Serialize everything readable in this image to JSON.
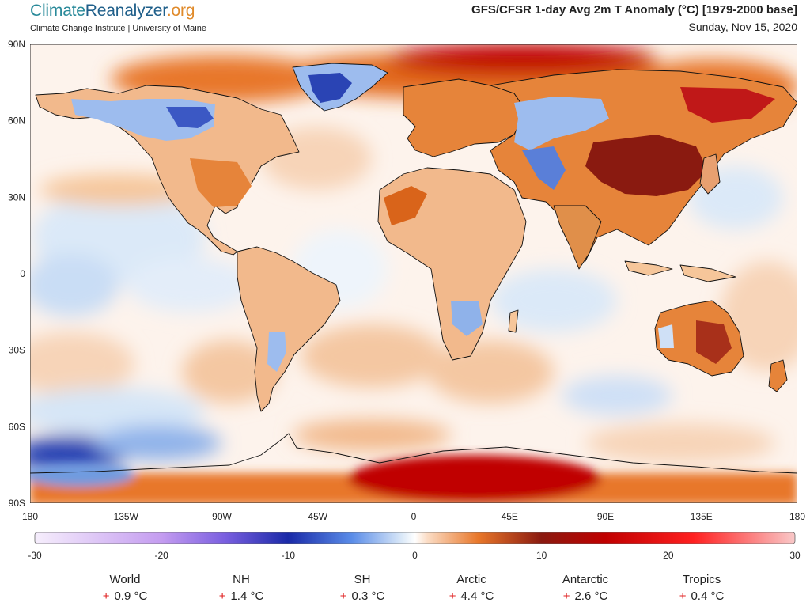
{
  "header": {
    "logo_part1": "Climate",
    "logo_part2": "Reanalyzer",
    "logo_part3": ".org",
    "subtitle": "Climate Change Institute | University of Maine",
    "title": "GFS/CFSR 1-day Avg 2m T Anomaly (°C) [1979-2000 base]",
    "date": "Sunday, Nov 15, 2020"
  },
  "map": {
    "lat_labels": [
      "90N",
      "60N",
      "30N",
      "0",
      "30S",
      "60S",
      "90S"
    ],
    "lon_labels": [
      "180",
      "135W",
      "90W",
      "45W",
      "0",
      "45E",
      "90E",
      "135E",
      "180"
    ],
    "colors": {
      "warm_strong": "#c00000",
      "warm": "#e0701f",
      "warm_light": "#f6c69a",
      "neutral": "#fdf3ec",
      "cool_light": "#d6e6f7",
      "cool": "#6f9be0",
      "cool_strong": "#2a44b4"
    }
  },
  "colorbar": {
    "ticks": [
      "-30",
      "-20",
      "-10",
      "0",
      "10",
      "20",
      "30"
    ],
    "min": -30,
    "max": 30,
    "stops": [
      {
        "v": -30,
        "c": "#f6eefc"
      },
      {
        "v": -20,
        "c": "#c49cf0"
      },
      {
        "v": -15,
        "c": "#7a5fe0"
      },
      {
        "v": -10,
        "c": "#1a2aa8"
      },
      {
        "v": -5,
        "c": "#5a8ce8"
      },
      {
        "v": -1,
        "c": "#dbe9f8"
      },
      {
        "v": 0,
        "c": "#ffffff"
      },
      {
        "v": 1,
        "c": "#fbdcc4"
      },
      {
        "v": 5,
        "c": "#e8772a"
      },
      {
        "v": 10,
        "c": "#8a1a10"
      },
      {
        "v": 15,
        "c": "#c00000"
      },
      {
        "v": 22,
        "c": "#ff2020"
      },
      {
        "v": 30,
        "c": "#f9c8c8"
      }
    ]
  },
  "stats": [
    {
      "name": "World",
      "sign": "+",
      "value": "0.9 °C"
    },
    {
      "name": "NH",
      "sign": "+",
      "value": "1.4 °C"
    },
    {
      "name": "SH",
      "sign": "+",
      "value": "0.3 °C"
    },
    {
      "name": "Arctic",
      "sign": "+",
      "value": "4.4 °C"
    },
    {
      "name": "Antarctic",
      "sign": "+",
      "value": "2.6 °C"
    },
    {
      "name": "Tropics",
      "sign": "+",
      "value": "0.4 °C"
    }
  ]
}
